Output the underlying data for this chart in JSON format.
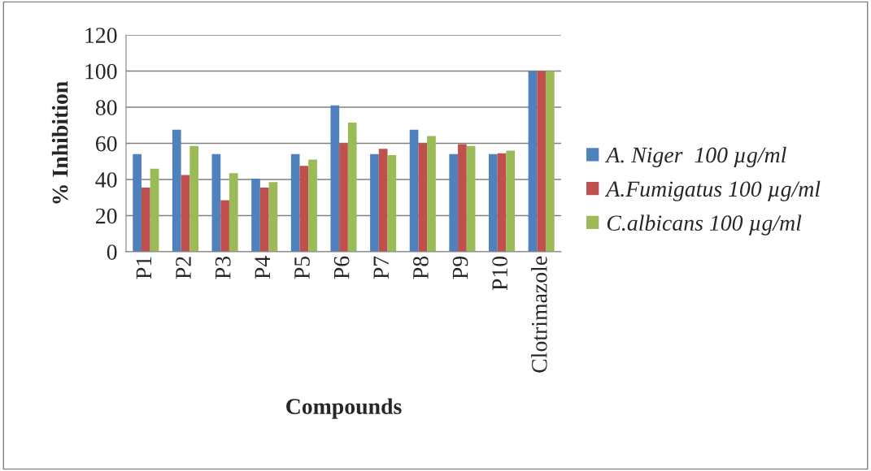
{
  "chart_data": {
    "type": "bar",
    "xlabel": "Compounds",
    "ylabel": "% Inhibition",
    "categories": [
      "P1",
      "P2",
      "P3",
      "P4",
      "P5",
      "P6",
      "P7",
      "P8",
      "P9",
      "P10",
      "Clotrimazole"
    ],
    "series": [
      {
        "name": "A. Niger  100 µg/ml",
        "color": "#4f81bd",
        "values": [
          54,
          67.5,
          54,
          40.5,
          54,
          81,
          54,
          67.5,
          54,
          54,
          100
        ]
      },
      {
        "name": "A.Fumigatus 100 µg/ml",
        "color": "#c0504d",
        "values": [
          35.5,
          42.5,
          28.5,
          35.5,
          47.5,
          60,
          57,
          60,
          59.5,
          54.5,
          100
        ]
      },
      {
        "name": "C.albicans 100 µg/ml",
        "color": "#9bbb59",
        "values": [
          46,
          58.5,
          43.5,
          38.5,
          51,
          71.5,
          53.5,
          64,
          58.5,
          56,
          100
        ]
      }
    ],
    "ylim": [
      0,
      120
    ],
    "yticks": [
      0,
      20,
      40,
      60,
      80,
      100,
      120
    ],
    "grid": "y",
    "legend": "right"
  }
}
